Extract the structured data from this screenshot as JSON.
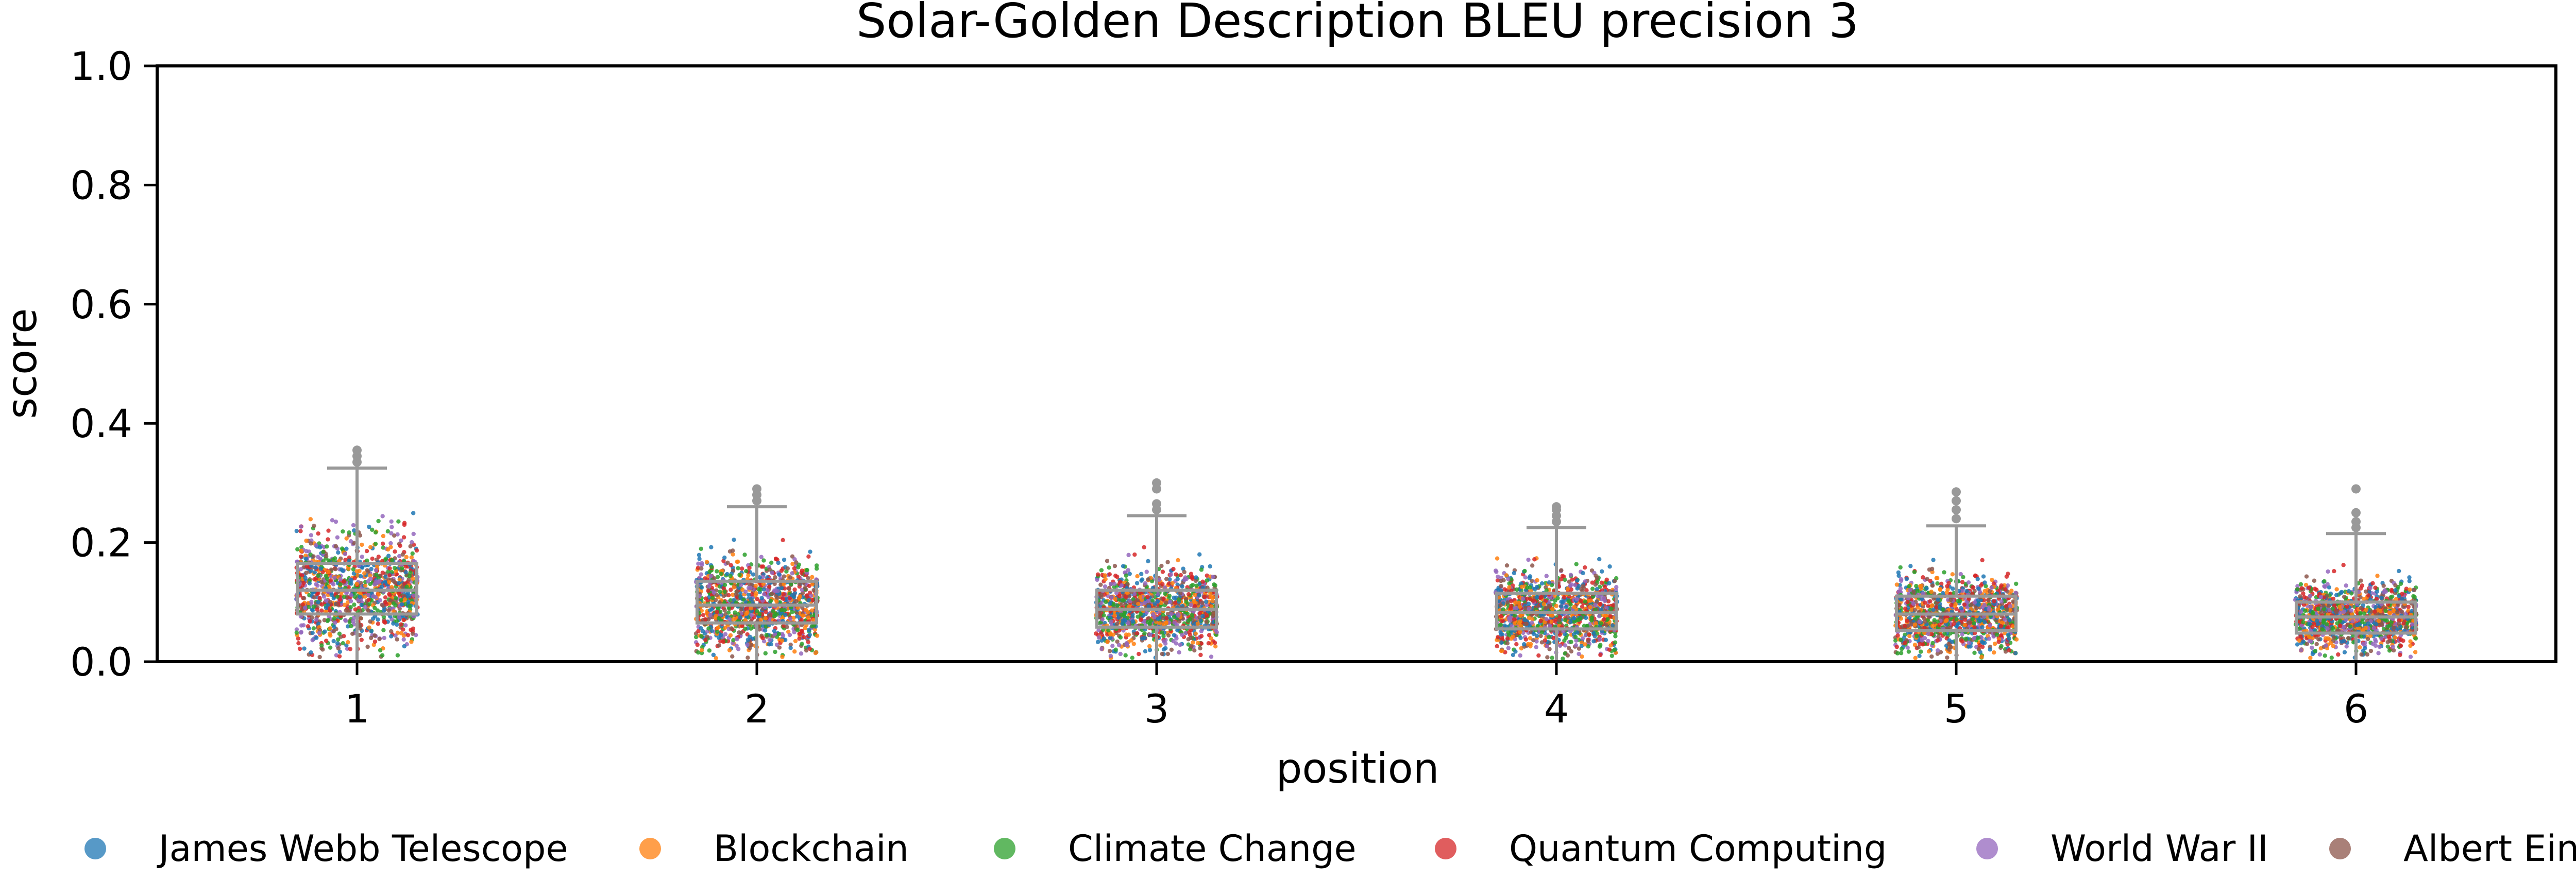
{
  "chart_data": {
    "type": "box",
    "title": "Solar-Golden Description BLEU precision 3",
    "xlabel": "position",
    "ylabel": "score",
    "ylim": [
      0.0,
      1.0
    ],
    "yticks": [
      0.0,
      0.2,
      0.4,
      0.6,
      0.8,
      1.0
    ],
    "yticklabels": [
      "0.0",
      "0.2",
      "0.4",
      "0.6",
      "0.8",
      "1.0"
    ],
    "categories": [
      "1",
      "2",
      "3",
      "4",
      "5",
      "6"
    ],
    "grid": false,
    "legend_position": "bottom",
    "box_stats": [
      {
        "position": "1",
        "whisker_low": 0.0,
        "q1": 0.08,
        "median": 0.12,
        "q3": 0.165,
        "whisker_high": 0.325,
        "outliers": [
          0.335,
          0.345,
          0.355
        ]
      },
      {
        "position": "2",
        "whisker_low": 0.0,
        "q1": 0.065,
        "median": 0.095,
        "q3": 0.135,
        "whisker_high": 0.26,
        "outliers": [
          0.27,
          0.28,
          0.29
        ]
      },
      {
        "position": "3",
        "whisker_low": 0.0,
        "q1": 0.058,
        "median": 0.088,
        "q3": 0.12,
        "whisker_high": 0.245,
        "outliers": [
          0.255,
          0.265,
          0.29,
          0.3
        ]
      },
      {
        "position": "4",
        "whisker_low": 0.0,
        "q1": 0.055,
        "median": 0.083,
        "q3": 0.115,
        "whisker_high": 0.225,
        "outliers": [
          0.235,
          0.245,
          0.255,
          0.26
        ]
      },
      {
        "position": "5",
        "whisker_low": 0.0,
        "q1": 0.052,
        "median": 0.08,
        "q3": 0.11,
        "whisker_high": 0.228,
        "outliers": [
          0.24,
          0.255,
          0.27,
          0.285
        ]
      },
      {
        "position": "6",
        "whisker_low": 0.0,
        "q1": 0.048,
        "median": 0.075,
        "q3": 0.1,
        "whisker_high": 0.215,
        "outliers": [
          0.225,
          0.235,
          0.25,
          0.29
        ]
      }
    ],
    "series": [
      {
        "name": "James Webb Telescope",
        "color": "#1f77b4"
      },
      {
        "name": "Blockchain",
        "color": "#ff7f0e"
      },
      {
        "name": "Climate Change",
        "color": "#2ca02c"
      },
      {
        "name": "Quantum Computing",
        "color": "#d62728"
      },
      {
        "name": "World War II",
        "color": "#9467bd"
      },
      {
        "name": "Albert Einstein",
        "color": "#8c564b"
      }
    ],
    "box_color": "#999999"
  }
}
